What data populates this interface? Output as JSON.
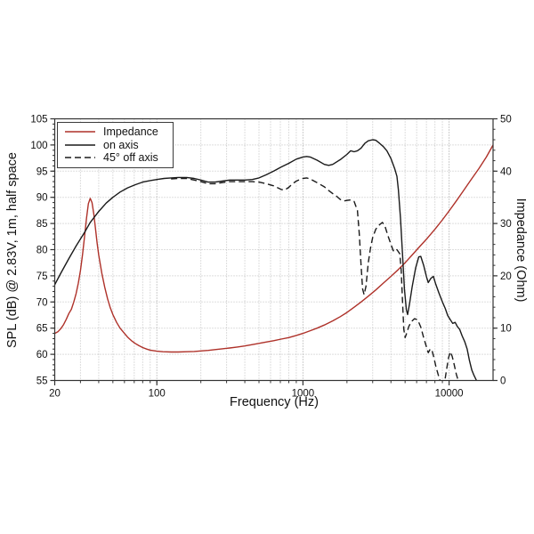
{
  "chart_data": {
    "type": "line",
    "title": "",
    "xlabel": "Frequency (Hz)",
    "ylabel_left": "SPL (dB) @ 2.83V, 1m, half space",
    "ylabel_right": "Impedance (Ohm)",
    "x_scale": "log",
    "xlim": [
      20,
      20000
    ],
    "ylim_left": [
      55,
      105
    ],
    "ylim_right": [
      0,
      50
    ],
    "x_ticks": [
      20,
      100,
      1000,
      10000
    ],
    "y_ticks_left": [
      55,
      60,
      65,
      70,
      75,
      80,
      85,
      90,
      95,
      100,
      105
    ],
    "y_ticks_right": [
      0,
      10,
      20,
      30,
      40,
      50
    ],
    "grid": "dotted",
    "legend_position": "top-left",
    "colors": {
      "impedance": "#ae3129",
      "spl": "#1a1a1a",
      "grid_minor": "#bdbdbd",
      "grid_decade": "#9a9a9a",
      "spine": "#333333"
    },
    "legend": [
      {
        "label": "Impedance",
        "color": "#ae3129",
        "dash": "none"
      },
      {
        "label": "on axis",
        "color": "#1a1a1a",
        "dash": "none"
      },
      {
        "label": "45° off axis",
        "color": "#1a1a1a",
        "dash": "7 4"
      }
    ],
    "series": [
      {
        "name": "Impedance",
        "axis": "right",
        "unit": "Ohm",
        "color": "#ae3129",
        "dash": "none",
        "points": [
          [
            20,
            9.0
          ],
          [
            21,
            9.3
          ],
          [
            22,
            9.9
          ],
          [
            23,
            10.7
          ],
          [
            24,
            11.7
          ],
          [
            25,
            12.8
          ],
          [
            26,
            13.6
          ],
          [
            27,
            15.0
          ],
          [
            28,
            16.6
          ],
          [
            29,
            18.6
          ],
          [
            30,
            21.0
          ],
          [
            31,
            24.0
          ],
          [
            32,
            27.5
          ],
          [
            33,
            31.0
          ],
          [
            34,
            33.8
          ],
          [
            35,
            34.8
          ],
          [
            36,
            34.0
          ],
          [
            37,
            31.8
          ],
          [
            38,
            29.0
          ],
          [
            39,
            26.3
          ],
          [
            40,
            24.0
          ],
          [
            42,
            20.5
          ],
          [
            44,
            17.8
          ],
          [
            46,
            15.6
          ],
          [
            48,
            13.9
          ],
          [
            50,
            12.6
          ],
          [
            53,
            11.1
          ],
          [
            56,
            10.0
          ],
          [
            60,
            9.0
          ],
          [
            63,
            8.3
          ],
          [
            67,
            7.6
          ],
          [
            71,
            7.1
          ],
          [
            75,
            6.7
          ],
          [
            80,
            6.3
          ],
          [
            85,
            6.0
          ],
          [
            90,
            5.8
          ],
          [
            100,
            5.6
          ],
          [
            110,
            5.5
          ],
          [
            125,
            5.45
          ],
          [
            140,
            5.45
          ],
          [
            160,
            5.5
          ],
          [
            180,
            5.55
          ],
          [
            200,
            5.65
          ],
          [
            225,
            5.75
          ],
          [
            250,
            5.9
          ],
          [
            280,
            6.05
          ],
          [
            315,
            6.2
          ],
          [
            355,
            6.4
          ],
          [
            400,
            6.6
          ],
          [
            450,
            6.85
          ],
          [
            500,
            7.1
          ],
          [
            560,
            7.35
          ],
          [
            630,
            7.6
          ],
          [
            710,
            7.9
          ],
          [
            800,
            8.2
          ],
          [
            900,
            8.6
          ],
          [
            1000,
            9.0
          ],
          [
            1120,
            9.5
          ],
          [
            1250,
            10.0
          ],
          [
            1400,
            10.6
          ],
          [
            1600,
            11.4
          ],
          [
            1800,
            12.2
          ],
          [
            2000,
            13.0
          ],
          [
            2240,
            14.0
          ],
          [
            2500,
            15.0
          ],
          [
            2800,
            16.1
          ],
          [
            3150,
            17.3
          ],
          [
            3550,
            18.6
          ],
          [
            4000,
            19.9
          ],
          [
            4500,
            21.2
          ],
          [
            5000,
            22.5
          ],
          [
            5600,
            24.0
          ],
          [
            6300,
            25.6
          ],
          [
            7100,
            27.2
          ],
          [
            8000,
            28.9
          ],
          [
            9000,
            30.7
          ],
          [
            10000,
            32.4
          ],
          [
            11200,
            34.3
          ],
          [
            12500,
            36.2
          ],
          [
            14000,
            38.2
          ],
          [
            16000,
            40.5
          ],
          [
            18000,
            42.7
          ],
          [
            20000,
            45.0
          ]
        ]
      },
      {
        "name": "on axis",
        "axis": "left",
        "unit": "dB",
        "color": "#1a1a1a",
        "dash": "none",
        "points": [
          [
            20,
            73.3
          ],
          [
            22,
            75.5
          ],
          [
            25,
            78.3
          ],
          [
            28,
            80.7
          ],
          [
            32,
            83.3
          ],
          [
            35,
            85.2
          ],
          [
            40,
            87.3
          ],
          [
            45,
            88.9
          ],
          [
            50,
            90.0
          ],
          [
            56,
            91.0
          ],
          [
            63,
            91.8
          ],
          [
            71,
            92.4
          ],
          [
            80,
            92.9
          ],
          [
            90,
            93.2
          ],
          [
            100,
            93.4
          ],
          [
            112,
            93.6
          ],
          [
            125,
            93.7
          ],
          [
            140,
            93.8
          ],
          [
            160,
            93.8
          ],
          [
            180,
            93.6
          ],
          [
            200,
            93.3
          ],
          [
            224,
            92.9
          ],
          [
            250,
            92.9
          ],
          [
            280,
            93.1
          ],
          [
            315,
            93.3
          ],
          [
            355,
            93.3
          ],
          [
            400,
            93.3
          ],
          [
            450,
            93.4
          ],
          [
            500,
            93.7
          ],
          [
            560,
            94.3
          ],
          [
            630,
            95.0
          ],
          [
            710,
            95.8
          ],
          [
            800,
            96.5
          ],
          [
            900,
            97.3
          ],
          [
            1000,
            97.7
          ],
          [
            1060,
            97.8
          ],
          [
            1120,
            97.7
          ],
          [
            1250,
            97.1
          ],
          [
            1400,
            96.3
          ],
          [
            1500,
            96.1
          ],
          [
            1600,
            96.3
          ],
          [
            1800,
            97.2
          ],
          [
            2000,
            98.2
          ],
          [
            2120,
            98.9
          ],
          [
            2240,
            98.7
          ],
          [
            2360,
            98.9
          ],
          [
            2500,
            99.4
          ],
          [
            2650,
            100.3
          ],
          [
            2800,
            100.8
          ],
          [
            3000,
            101.0
          ],
          [
            3150,
            100.9
          ],
          [
            3350,
            100.3
          ],
          [
            3550,
            99.7
          ],
          [
            3750,
            98.9
          ],
          [
            4000,
            97.4
          ],
          [
            4250,
            95.4
          ],
          [
            4400,
            94.0
          ],
          [
            4500,
            91.5
          ],
          [
            4650,
            86.0
          ],
          [
            4800,
            79.0
          ],
          [
            4950,
            72.5
          ],
          [
            5100,
            68.5
          ],
          [
            5200,
            67.6
          ],
          [
            5350,
            69.5
          ],
          [
            5600,
            73.0
          ],
          [
            5900,
            76.5
          ],
          [
            6200,
            78.6
          ],
          [
            6400,
            78.7
          ],
          [
            6700,
            77.0
          ],
          [
            7000,
            74.8
          ],
          [
            7200,
            73.7
          ],
          [
            7500,
            74.5
          ],
          [
            7800,
            74.9
          ],
          [
            8100,
            73.4
          ],
          [
            8500,
            71.8
          ],
          [
            9000,
            70.0
          ],
          [
            9400,
            68.8
          ],
          [
            9800,
            67.4
          ],
          [
            10200,
            66.6
          ],
          [
            10600,
            65.9
          ],
          [
            11000,
            66.1
          ],
          [
            11400,
            65.3
          ],
          [
            11800,
            64.8
          ],
          [
            12300,
            63.5
          ],
          [
            12800,
            62.4
          ],
          [
            13300,
            61.0
          ],
          [
            13800,
            58.8
          ],
          [
            14300,
            57.0
          ],
          [
            14800,
            56.0
          ],
          [
            15400,
            55.0
          ]
        ]
      },
      {
        "name": "45° off axis",
        "axis": "left",
        "unit": "dB",
        "color": "#1a1a1a",
        "dash": "7 4",
        "points": [
          [
            125,
            93.5
          ],
          [
            140,
            93.6
          ],
          [
            160,
            93.6
          ],
          [
            180,
            93.3
          ],
          [
            200,
            93.0
          ],
          [
            224,
            92.6
          ],
          [
            250,
            92.6
          ],
          [
            280,
            92.8
          ],
          [
            315,
            93.0
          ],
          [
            355,
            93.0
          ],
          [
            400,
            93.0
          ],
          [
            450,
            93.0
          ],
          [
            500,
            92.9
          ],
          [
            560,
            92.6
          ],
          [
            630,
            92.2
          ],
          [
            710,
            91.5
          ],
          [
            750,
            91.4
          ],
          [
            800,
            91.9
          ],
          [
            850,
            92.6
          ],
          [
            900,
            93.1
          ],
          [
            950,
            93.4
          ],
          [
            1000,
            93.6
          ],
          [
            1060,
            93.7
          ],
          [
            1120,
            93.5
          ],
          [
            1250,
            92.8
          ],
          [
            1400,
            92.0
          ],
          [
            1500,
            91.3
          ],
          [
            1600,
            90.7
          ],
          [
            1700,
            90.2
          ],
          [
            1800,
            89.6
          ],
          [
            1900,
            89.3
          ],
          [
            2000,
            89.4
          ],
          [
            2120,
            89.5
          ],
          [
            2240,
            89.2
          ],
          [
            2360,
            87.5
          ],
          [
            2430,
            83.0
          ],
          [
            2500,
            77.0
          ],
          [
            2560,
            72.5
          ],
          [
            2620,
            71.4
          ],
          [
            2700,
            73.0
          ],
          [
            2800,
            77.5
          ],
          [
            2900,
            80.3
          ],
          [
            3000,
            82.3
          ],
          [
            3150,
            83.9
          ],
          [
            3350,
            84.8
          ],
          [
            3500,
            85.2
          ],
          [
            3650,
            84.4
          ],
          [
            3800,
            82.8
          ],
          [
            4000,
            81.0
          ],
          [
            4150,
            79.8
          ],
          [
            4300,
            79.6
          ],
          [
            4400,
            80.0
          ],
          [
            4500,
            79.6
          ],
          [
            4600,
            79.2
          ],
          [
            4700,
            76.0
          ],
          [
            4800,
            70.0
          ],
          [
            4900,
            64.8
          ],
          [
            5000,
            63.2
          ],
          [
            5150,
            64.2
          ],
          [
            5300,
            65.3
          ],
          [
            5500,
            66.2
          ],
          [
            5800,
            66.8
          ],
          [
            6100,
            66.6
          ],
          [
            6400,
            65.2
          ],
          [
            6700,
            63.2
          ],
          [
            7000,
            61.4
          ],
          [
            7200,
            60.3
          ],
          [
            7400,
            60.9
          ],
          [
            7600,
            61.0
          ],
          [
            7800,
            59.8
          ],
          [
            8100,
            57.8
          ],
          [
            8400,
            56.2
          ],
          [
            8700,
            54.8
          ],
          [
            9000,
            53.5
          ],
          [
            9300,
            54.5
          ],
          [
            9600,
            57.0
          ],
          [
            9900,
            59.3
          ],
          [
            10200,
            60.5
          ],
          [
            10500,
            59.6
          ],
          [
            10800,
            58.2
          ],
          [
            11200,
            56.2
          ],
          [
            11600,
            54.8
          ],
          [
            11900,
            53.8
          ]
        ]
      }
    ]
  }
}
